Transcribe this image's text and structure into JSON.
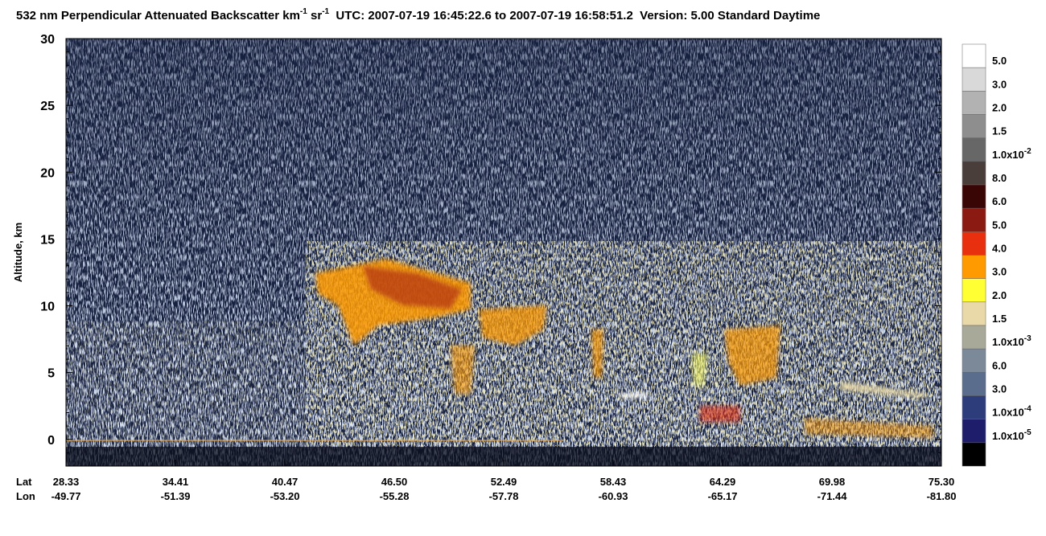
{
  "chart_data": {
    "type": "curtain",
    "title": [
      "532 nm Perpendicular Attenuated Backscatter km",
      "-1",
      " sr",
      "-1",
      "  UTC: 2007-07-19 16:45:22.6 to 2007-07-19 16:58:51.2  Version: 5.00 Standard Daytime"
    ],
    "ylabel": "Altitude, km",
    "ylim": [
      -2,
      30
    ],
    "yticks": [
      0,
      5,
      10,
      15,
      20,
      25,
      30
    ],
    "minor_tick_step": 1,
    "x_rows": [
      "Lat",
      "Lon"
    ],
    "lat": [
      "28.33",
      "34.41",
      "40.47",
      "46.50",
      "52.49",
      "58.43",
      "64.29",
      "69.98",
      "75.30"
    ],
    "lon": [
      "-49.77",
      "-51.39",
      "-53.20",
      "-55.28",
      "-57.78",
      "-60.93",
      "-65.17",
      "-71.44",
      "-81.80"
    ],
    "colorbar": {
      "colors": [
        "#ffffff",
        "#d9d9d9",
        "#b2b2b2",
        "#8e8e8e",
        "#676767",
        "#4a3e3b",
        "#3a0505",
        "#8a1a12",
        "#e8300f",
        "#ff9a00",
        "#ffff33",
        "#e9d9a8",
        "#a9a99a",
        "#7b8999",
        "#5a6d8c",
        "#2d3d7c",
        "#1d1d6c",
        "#000000"
      ],
      "labels": [
        "5.0",
        "3.0",
        "2.0",
        "1.5",
        {
          "text": "1.0x10",
          "sup": "-2"
        },
        "8.0",
        "6.0",
        "5.0",
        "4.0",
        "3.0",
        "2.0",
        "1.5",
        {
          "text": "1.0x10",
          "sup": "-3"
        },
        "6.0",
        "3.0",
        {
          "text": "1.0x10",
          "sup": "-4"
        },
        {
          "text": "1.0x10",
          "sup": "-5"
        }
      ]
    }
  }
}
